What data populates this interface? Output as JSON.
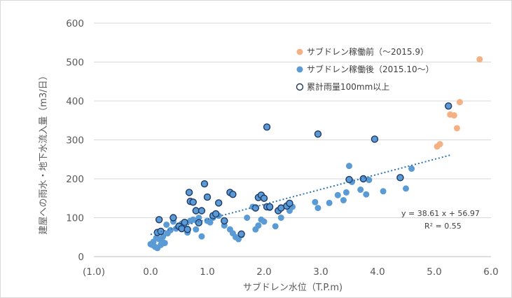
{
  "chart_data": {
    "type": "scatter",
    "xlabel": "サブドレン水位（T.P.m)",
    "ylabel": "建屋への雨水・地下水流入量（m3/日）",
    "xlim": [
      -1.0,
      6.0
    ],
    "ylim": [
      0,
      600
    ],
    "x_ticks": [
      "(1.0)",
      "0.0",
      "1.0",
      "2.0",
      "3.0",
      "4.0",
      "5.0",
      "6.0"
    ],
    "y_ticks": [
      "0",
      "100",
      "200",
      "300",
      "400",
      "500",
      "600"
    ],
    "grid": "horizontal",
    "legend_position": "top-right",
    "colors": {
      "before": "#f4b183",
      "after": "#5b9bd5",
      "rain": "#1f3864",
      "trend": "#2e75b6",
      "neg_tick": "#c00000"
    },
    "series": [
      {
        "name": "サブドレン稼働前（～2015.9）",
        "points": [
          [
            5.8,
            507
          ],
          [
            5.45,
            397
          ],
          [
            5.28,
            365
          ],
          [
            5.35,
            363
          ],
          [
            5.4,
            330
          ],
          [
            5.05,
            283
          ],
          [
            5.1,
            289
          ]
        ]
      },
      {
        "name": "サブドレン稼働後（2015.10～）",
        "points": [
          [
            0.0,
            32
          ],
          [
            0.03,
            30
          ],
          [
            0.05,
            38
          ],
          [
            0.08,
            25
          ],
          [
            0.1,
            48
          ],
          [
            0.12,
            22
          ],
          [
            0.15,
            45
          ],
          [
            0.18,
            30
          ],
          [
            0.2,
            40
          ],
          [
            0.22,
            52
          ],
          [
            0.25,
            35
          ],
          [
            0.28,
            82
          ],
          [
            0.3,
            60
          ],
          [
            0.35,
            68
          ],
          [
            0.4,
            90
          ],
          [
            0.45,
            72
          ],
          [
            0.5,
            80
          ],
          [
            0.55,
            85
          ],
          [
            0.6,
            75
          ],
          [
            0.65,
            62
          ],
          [
            0.7,
            92
          ],
          [
            0.75,
            95
          ],
          [
            0.8,
            70
          ],
          [
            0.85,
            100
          ],
          [
            0.9,
            52
          ],
          [
            1.0,
            92
          ],
          [
            1.05,
            88
          ],
          [
            1.1,
            100
          ],
          [
            1.2,
            105
          ],
          [
            1.3,
            80
          ],
          [
            1.4,
            70
          ],
          [
            1.45,
            60
          ],
          [
            1.5,
            50
          ],
          [
            1.55,
            45
          ],
          [
            1.6,
            55
          ],
          [
            1.7,
            100
          ],
          [
            1.8,
            128
          ],
          [
            1.85,
            70
          ],
          [
            1.9,
            80
          ],
          [
            1.95,
            95
          ],
          [
            2.0,
            90
          ],
          [
            2.1,
            125
          ],
          [
            2.2,
            78
          ],
          [
            2.3,
            100
          ],
          [
            2.45,
            118
          ],
          [
            2.5,
            128
          ],
          [
            2.9,
            140
          ],
          [
            2.95,
            125
          ],
          [
            3.15,
            138
          ],
          [
            3.3,
            158
          ],
          [
            3.4,
            145
          ],
          [
            3.45,
            165
          ],
          [
            3.5,
            233
          ],
          [
            3.55,
            192
          ],
          [
            3.7,
            172
          ],
          [
            3.8,
            160
          ],
          [
            3.85,
            197
          ],
          [
            4.1,
            168
          ],
          [
            4.5,
            175
          ],
          [
            4.6,
            226
          ]
        ]
      },
      {
        "name": "累計雨量100mm以上",
        "points": [
          [
            0.12,
            62
          ],
          [
            0.18,
            65
          ],
          [
            0.15,
            95
          ],
          [
            0.4,
            100
          ],
          [
            0.5,
            78
          ],
          [
            0.55,
            72
          ],
          [
            0.6,
            88
          ],
          [
            0.65,
            70
          ],
          [
            0.68,
            165
          ],
          [
            0.7,
            142
          ],
          [
            0.75,
            140
          ],
          [
            0.8,
            118
          ],
          [
            0.85,
            87
          ],
          [
            0.9,
            118
          ],
          [
            0.95,
            187
          ],
          [
            1.0,
            153
          ],
          [
            1.1,
            105
          ],
          [
            1.15,
            110
          ],
          [
            1.2,
            138
          ],
          [
            1.3,
            92
          ],
          [
            1.4,
            165
          ],
          [
            1.45,
            160
          ],
          [
            1.6,
            58
          ],
          [
            1.85,
            125
          ],
          [
            1.9,
            152
          ],
          [
            1.95,
            158
          ],
          [
            2.0,
            150
          ],
          [
            2.05,
            128
          ],
          [
            2.1,
            128
          ],
          [
            2.05,
            333
          ],
          [
            2.25,
            118
          ],
          [
            2.3,
            125
          ],
          [
            2.4,
            130
          ],
          [
            2.45,
            137
          ],
          [
            2.95,
            315
          ],
          [
            3.5,
            198
          ],
          [
            3.75,
            200
          ],
          [
            3.95,
            302
          ],
          [
            4.4,
            203
          ],
          [
            5.25,
            387
          ]
        ]
      }
    ],
    "trendline": {
      "type": "linear",
      "slope": 38.61,
      "intercept": 56.97,
      "x_range": [
        0.0,
        5.3
      ],
      "equation": "y = 38.61 x + 56.97",
      "r2": "R² = 0.55"
    }
  }
}
